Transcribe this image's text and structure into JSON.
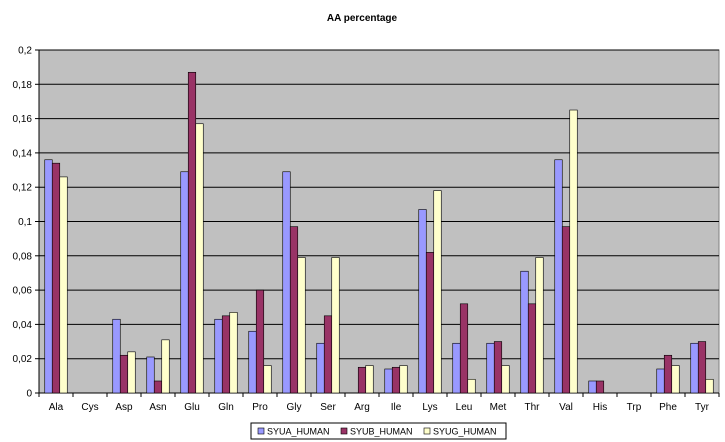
{
  "chart_data": {
    "type": "bar",
    "title": "AA percentage",
    "xlabel": "",
    "ylabel": "",
    "ylim": [
      0,
      0.2
    ],
    "yticks": [
      "0",
      "0,02",
      "0,04",
      "0,06",
      "0,08",
      "0,1",
      "0,12",
      "0,14",
      "0,16",
      "0,18",
      "0,2"
    ],
    "grid": "horizontal",
    "legend_position": "bottom",
    "categories": [
      "Ala",
      "Cys",
      "Asp",
      "Asn",
      "Glu",
      "Gln",
      "Pro",
      "Gly",
      "Ser",
      "Arg",
      "Ile",
      "Lys",
      "Leu",
      "Met",
      "Thr",
      "Val",
      "His",
      "Trp",
      "Phe",
      "Tyr"
    ],
    "series": [
      {
        "name": "SYUA_HUMAN",
        "color": "#9999ff",
        "values": [
          0.136,
          0,
          0.043,
          0.021,
          0.129,
          0.043,
          0.036,
          0.129,
          0.029,
          0,
          0.014,
          0.107,
          0.029,
          0.029,
          0.071,
          0.136,
          0.007,
          0,
          0.014,
          0.029
        ]
      },
      {
        "name": "SYUB_HUMAN",
        "color": "#993366",
        "values": [
          0.134,
          0,
          0.022,
          0.007,
          0.187,
          0.045,
          0.06,
          0.097,
          0.045,
          0.015,
          0.015,
          0.082,
          0.052,
          0.03,
          0.052,
          0.097,
          0.007,
          0,
          0.022,
          0.03
        ]
      },
      {
        "name": "SYUG_HUMAN",
        "color": "#ffffcc",
        "values": [
          0.126,
          0,
          0.024,
          0.031,
          0.157,
          0.047,
          0.016,
          0.079,
          0.079,
          0.016,
          0.016,
          0.118,
          0.008,
          0.016,
          0.079,
          0.165,
          0,
          0,
          0.016,
          0.008
        ]
      }
    ],
    "colors": {
      "plot_background": "#c0c0c0",
      "gridline": "#000000",
      "bar_outline": "#000000"
    }
  }
}
